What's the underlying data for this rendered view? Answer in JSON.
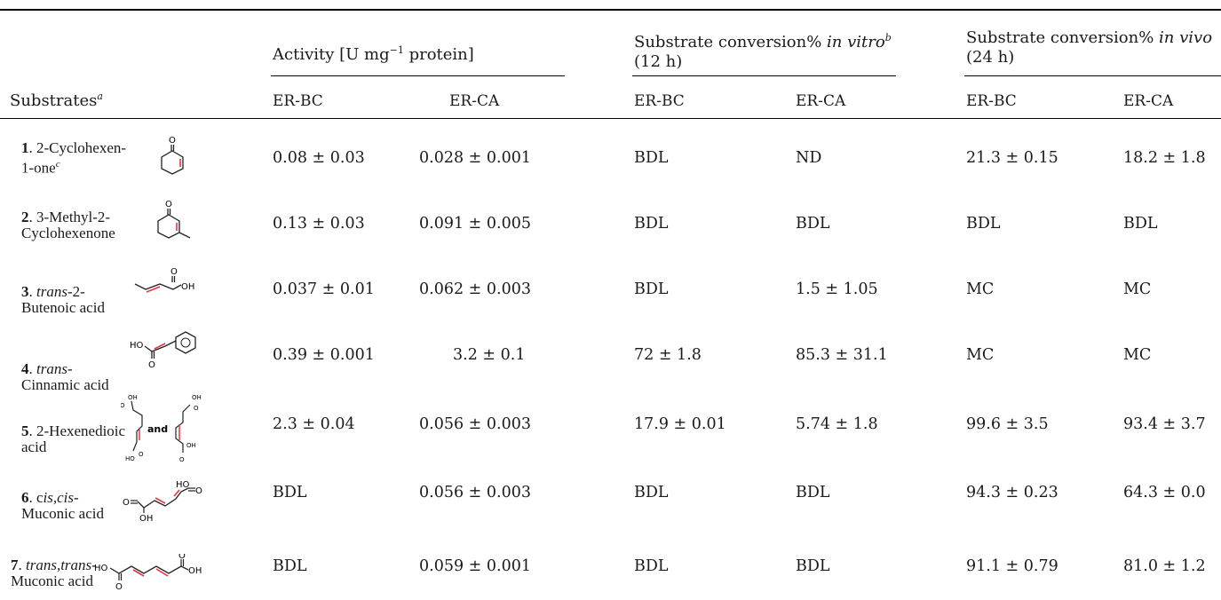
{
  "header": {
    "activity": "Activity [U mg",
    "activity_exp": "−1",
    "activity_tail": " protein]",
    "vitro_line1": "Substrate conversion% ",
    "vitro_italic": "in vitro",
    "vitro_sup": "b",
    "vitro_line2": "(12 h)",
    "vivo_line1": "Substrate conversion% ",
    "vivo_italic": "in vivo",
    "vivo_line2": "(24 h)",
    "substrates": "Substrates",
    "substrates_sup": "a",
    "col_er_bc": "ER-BC",
    "col_er_ca": "ER-CA"
  },
  "rows": [
    {
      "num": "1",
      "name1": ". 2-Cyclohexen-",
      "name2": "1-one",
      "name2_sup": "c",
      "act_bc": "0.08 ± 0.03",
      "act_ca": "0.028 ± 0.001",
      "vitro_bc": "BDL",
      "vitro_ca": "ND",
      "vivo_bc": "21.3 ± 0.15",
      "vivo_ca": "18.2 ± 1.8"
    },
    {
      "num": "2",
      "name1": ". 3-Methyl-2-",
      "name2": "Cyclohexenone",
      "act_bc": "0.13 ± 0.03",
      "act_ca": "0.091 ± 0.005",
      "vitro_bc": "BDL",
      "vitro_ca": "BDL",
      "vivo_bc": "BDL",
      "vivo_ca": "BDL"
    },
    {
      "num": "3",
      "name1_italic": "trans",
      "name1": "-2-",
      "name2": "Butenoic acid",
      "act_bc": "0.037 ± 0.01",
      "act_ca": "0.062 ± 0.003",
      "vitro_bc": "BDL",
      "vitro_ca": "1.5 ± 1.05",
      "vivo_bc": "MC",
      "vivo_ca": "MC"
    },
    {
      "num": "4",
      "name1_italic": "trans",
      "name1": "-",
      "name2": "Cinnamic acid",
      "act_bc": "0.39 ± 0.001",
      "act_ca": "3.2 ± 0.1",
      "vitro_bc": "72 ± 1.8",
      "vitro_ca": "85.3 ± 31.1",
      "vivo_bc": "MC",
      "vivo_ca": "MC"
    },
    {
      "num": "5",
      "name1": ". 2-Hexenedioic",
      "name2": "acid",
      "and_label": "and",
      "act_bc": "2.3 ± 0.04",
      "act_ca": "0.056 ± 0.003",
      "vitro_bc": "17.9 ± 0.01",
      "vitro_ca": "5.74 ± 1.8",
      "vivo_bc": "99.6 ± 3.5",
      "vivo_ca": "93.4 ± 3.7"
    },
    {
      "num": "6",
      "name1_pre": ". c",
      "name1_italic": "is,cis",
      "name1": "-",
      "name2": "Muconic acid",
      "act_bc": "BDL",
      "act_ca": "0.056 ± 0.003",
      "vitro_bc": "BDL",
      "vitro_ca": "BDL",
      "vivo_bc": "94.3 ± 0.23",
      "vivo_ca": "64.3 ± 0.0"
    },
    {
      "num": "7",
      "name1_italic": "trans,trans",
      "name1": "-",
      "name2": "Muconic acid",
      "act_bc": "BDL",
      "act_ca": "0.059 ± 0.001",
      "vitro_bc": "BDL",
      "vitro_ca": "BDL",
      "vivo_bc": "91.1 ± 0.79",
      "vivo_ca": "81.0 ± 1.2"
    }
  ],
  "labels": {
    "oh": "OH",
    "ho": "HO",
    "o": "O"
  },
  "colors": {
    "double_bond": "#e8343a",
    "rule": "#000000"
  }
}
